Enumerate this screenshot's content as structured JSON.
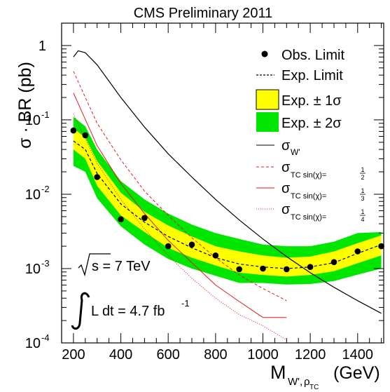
{
  "chart_data": {
    "type": "line",
    "title": "CMS Preliminary 2011",
    "xlabel": {
      "main": "M",
      "sub1": "W',",
      "sub2": "ρ",
      "sub3": "TC",
      "unit": "(GeV)"
    },
    "ylabel": "σ · BR (pb)",
    "xlim": [
      150,
      1510
    ],
    "ylim": [
      0.0001,
      2
    ],
    "yscale": "log",
    "x_ticks": [
      200,
      400,
      600,
      800,
      1000,
      1200,
      1400
    ],
    "y_ticks": [
      {
        "value": 0.0001,
        "base": "10",
        "exp": "-4"
      },
      {
        "value": 0.001,
        "base": "10",
        "exp": "-3"
      },
      {
        "value": 0.01,
        "base": "10",
        "exp": "-2"
      },
      {
        "value": 0.1,
        "base": "10",
        "exp": "-1"
      },
      {
        "value": 1,
        "base": "1",
        "exp": ""
      }
    ],
    "annotations": {
      "sqrt_s": "s = 7 TeV",
      "lumi_main": "L dt = 4.7 fb",
      "lumi_exp": "-1"
    },
    "colors": {
      "band1": "#ffff00",
      "band2": "#00e600",
      "tc": "#e61919",
      "wprime": "#000000"
    },
    "legend": [
      {
        "key": "obs",
        "label": "Obs. Limit"
      },
      {
        "key": "exp",
        "label": "Exp. Limit"
      },
      {
        "key": "band1",
        "label": "Exp. ± 1σ"
      },
      {
        "key": "band2",
        "label": "Exp. ± 2σ"
      },
      {
        "key": "wprime",
        "label": "σ",
        "sub": "W'"
      },
      {
        "key": "tc2",
        "label": "σ",
        "sub": "TC sin(χ)=",
        "num": "1",
        "den": "2"
      },
      {
        "key": "tc3",
        "label": "σ",
        "sub": "TC sin(χ)=",
        "num": "1",
        "den": "3"
      },
      {
        "key": "tc4",
        "label": "σ",
        "sub": "TC sin(χ)=",
        "num": "1",
        "den": "4"
      }
    ],
    "obs_limit": {
      "x": [
        200,
        250,
        300,
        400,
        500,
        600,
        700,
        800,
        900,
        1000,
        1100,
        1200,
        1300,
        1400,
        1500
      ],
      "y": [
        0.072,
        0.062,
        0.017,
        0.0046,
        0.0048,
        0.002,
        0.0021,
        0.0015,
        0.00098,
        0.001,
        0.00098,
        0.00105,
        0.00122,
        0.0017,
        0.002
      ]
    },
    "exp_limit": {
      "x": [
        200,
        250,
        300,
        400,
        500,
        600,
        700,
        800,
        900,
        1000,
        1100,
        1200,
        1300,
        1400,
        1500
      ],
      "y": [
        0.052,
        0.04,
        0.019,
        0.0074,
        0.0042,
        0.0027,
        0.0019,
        0.0014,
        0.00115,
        0.00105,
        0.001,
        0.00105,
        0.0012,
        0.0016,
        0.0021
      ]
    },
    "band1": {
      "x": [
        200,
        250,
        300,
        400,
        500,
        600,
        700,
        800,
        900,
        1000,
        1100,
        1200,
        1300,
        1400,
        1500
      ],
      "lo": [
        0.04,
        0.03,
        0.013,
        0.0052,
        0.0031,
        0.0019,
        0.0014,
        0.0011,
        0.00088,
        0.00082,
        0.00078,
        0.00082,
        0.00092,
        0.00118,
        0.0015
      ],
      "hi": [
        0.077,
        0.058,
        0.028,
        0.0105,
        0.0058,
        0.0038,
        0.0027,
        0.002,
        0.0017,
        0.0015,
        0.0014,
        0.00145,
        0.0017,
        0.0022,
        0.0028
      ]
    },
    "band2": {
      "x": [
        200,
        250,
        300,
        400,
        500,
        600,
        700,
        800,
        900,
        1000,
        1100,
        1200,
        1300,
        1400,
        1500
      ],
      "lo": [
        0.024,
        0.02,
        0.0088,
        0.0037,
        0.0021,
        0.00135,
        0.001,
        0.0008,
        0.00064,
        0.00064,
        0.00061,
        0.00062,
        0.00068,
        0.00083,
        0.001
      ],
      "hi": [
        0.11,
        0.082,
        0.04,
        0.015,
        0.0085,
        0.0055,
        0.0039,
        0.003,
        0.0025,
        0.0021,
        0.002,
        0.002,
        0.0023,
        0.003,
        0.0031
      ]
    },
    "sigma_wprime": {
      "x": [
        200,
        220,
        250,
        300,
        400,
        500,
        600,
        700,
        800,
        900,
        1000,
        1100,
        1200,
        1300,
        1400,
        1500
      ],
      "y": [
        0.7,
        0.85,
        0.8,
        0.55,
        0.2,
        0.08,
        0.035,
        0.017,
        0.0085,
        0.0045,
        0.0025,
        0.00145,
        0.00088,
        0.00056,
        0.00037,
        0.00025
      ]
    },
    "sigma_tc_half": {
      "x": [
        200,
        300,
        400,
        500,
        600,
        700,
        800,
        900,
        1000,
        1100
      ],
      "y": [
        0.45,
        0.09,
        0.029,
        0.011,
        0.0052,
        0.0026,
        0.0014,
        0.00082,
        0.00054,
        0.00037
      ]
    },
    "sigma_tc_third": {
      "x": [
        200,
        300,
        400,
        500,
        600,
        700,
        800,
        900,
        1000,
        1100
      ],
      "y": [
        0.23,
        0.045,
        0.014,
        0.0055,
        0.0024,
        0.0012,
        0.0006,
        0.00036,
        0.00022,
        0.00022
      ]
    },
    "sigma_tc_quarter": {
      "x": [
        200,
        300,
        400,
        500,
        600,
        700,
        800,
        900,
        1000,
        1100
      ],
      "y": [
        0.12,
        0.026,
        0.0085,
        0.0034,
        0.0015,
        0.00074,
        0.0004,
        0.00024,
        0.00017,
        0.00011
      ]
    }
  }
}
